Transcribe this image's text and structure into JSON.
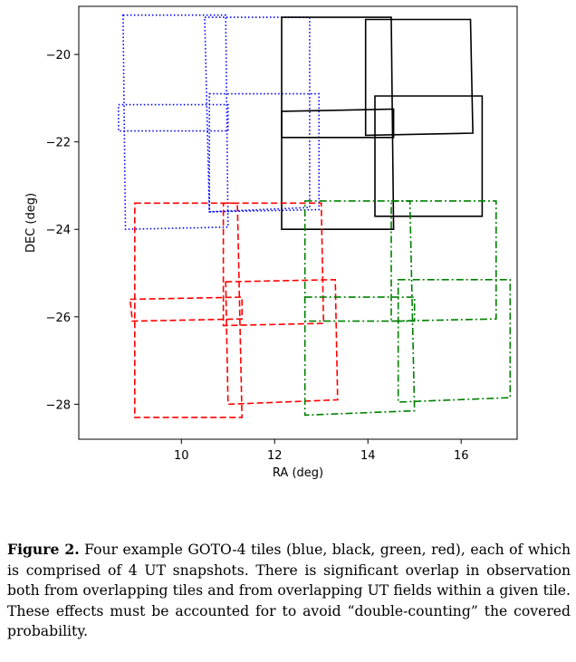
{
  "chart_data": {
    "type": "scatter",
    "xlabel": "RA (deg)",
    "ylabel": "DEC (deg)",
    "xlim": [
      7.8,
      17.2
    ],
    "ylim": [
      -28.8,
      -18.9
    ],
    "xticks": [
      10,
      12,
      14,
      16
    ],
    "yticks": [
      -20,
      -22,
      -24,
      -26,
      -28
    ],
    "xtick_labels": [
      "10",
      "12",
      "14",
      "16"
    ],
    "ytick_labels": [
      "−20",
      "−22",
      "−24",
      "−26",
      "−28"
    ],
    "grid": false,
    "series": [
      {
        "color": "#0000ff",
        "linestyle": "dotted",
        "tiles": [
          [
            [
              8.75,
              -19.1
            ],
            [
              10.95,
              -19.1
            ],
            [
              11.0,
              -23.95
            ],
            [
              8.8,
              -24.0
            ]
          ],
          [
            [
              10.5,
              -19.15
            ],
            [
              12.75,
              -19.15
            ],
            [
              12.75,
              -23.5
            ],
            [
              10.6,
              -23.6
            ]
          ],
          [
            [
              8.65,
              -21.15
            ],
            [
              11.0,
              -21.15
            ],
            [
              11.0,
              -21.75
            ],
            [
              8.65,
              -21.75
            ]
          ],
          [
            [
              10.6,
              -20.9
            ],
            [
              12.95,
              -20.9
            ],
            [
              12.95,
              -23.55
            ],
            [
              10.6,
              -23.6
            ]
          ]
        ]
      },
      {
        "color": "#000000",
        "linestyle": "solid",
        "tiles": [
          [
            [
              12.15,
              -19.15
            ],
            [
              14.5,
              -19.15
            ],
            [
              14.55,
              -24.0
            ],
            [
              12.15,
              -24.0
            ]
          ],
          [
            [
              13.95,
              -19.2
            ],
            [
              16.2,
              -19.2
            ],
            [
              16.25,
              -21.8
            ],
            [
              13.95,
              -21.85
            ]
          ],
          [
            [
              12.15,
              -21.3
            ],
            [
              14.55,
              -21.25
            ],
            [
              14.55,
              -21.9
            ],
            [
              12.15,
              -21.9
            ]
          ],
          [
            [
              14.15,
              -20.95
            ],
            [
              16.45,
              -20.95
            ],
            [
              16.45,
              -23.7
            ],
            [
              14.15,
              -23.7
            ]
          ]
        ]
      },
      {
        "color": "#ff0000",
        "linestyle": "dashed",
        "tiles": [
          [
            [
              9.0,
              -23.4
            ],
            [
              11.2,
              -23.4
            ],
            [
              11.3,
              -28.3
            ],
            [
              9.0,
              -28.3
            ]
          ],
          [
            [
              10.9,
              -23.4
            ],
            [
              13.0,
              -23.4
            ],
            [
              13.05,
              -26.15
            ],
            [
              10.9,
              -26.2
            ]
          ],
          [
            [
              8.9,
              -25.6
            ],
            [
              11.3,
              -25.55
            ],
            [
              11.3,
              -26.05
            ],
            [
              8.95,
              -26.1
            ]
          ],
          [
            [
              10.95,
              -25.2
            ],
            [
              13.3,
              -25.15
            ],
            [
              13.35,
              -27.9
            ],
            [
              11.0,
              -28.0
            ]
          ]
        ]
      },
      {
        "color": "#008000",
        "linestyle": "dashdot",
        "tiles": [
          [
            [
              12.65,
              -23.35
            ],
            [
              14.9,
              -23.35
            ],
            [
              15.0,
              -28.15
            ],
            [
              12.65,
              -28.25
            ]
          ],
          [
            [
              14.5,
              -23.35
            ],
            [
              16.75,
              -23.35
            ],
            [
              16.75,
              -26.05
            ],
            [
              14.5,
              -26.1
            ]
          ],
          [
            [
              12.65,
              -25.55
            ],
            [
              15.0,
              -25.55
            ],
            [
              15.0,
              -26.1
            ],
            [
              12.65,
              -26.1
            ]
          ],
          [
            [
              14.65,
              -25.15
            ],
            [
              17.05,
              -25.15
            ],
            [
              17.05,
              -27.85
            ],
            [
              14.65,
              -27.95
            ]
          ]
        ]
      }
    ]
  },
  "caption": {
    "label": "Figure 2.",
    "text": " Four example GOTO-4 tiles (blue, black, green, red), each of which is comprised of 4 UT snapshots. There is significant overlap in observation both from overlapping tiles and from overlapping UT fields within a given tile. These effects must be accounted for to avoid “double-counting” the covered probability."
  }
}
